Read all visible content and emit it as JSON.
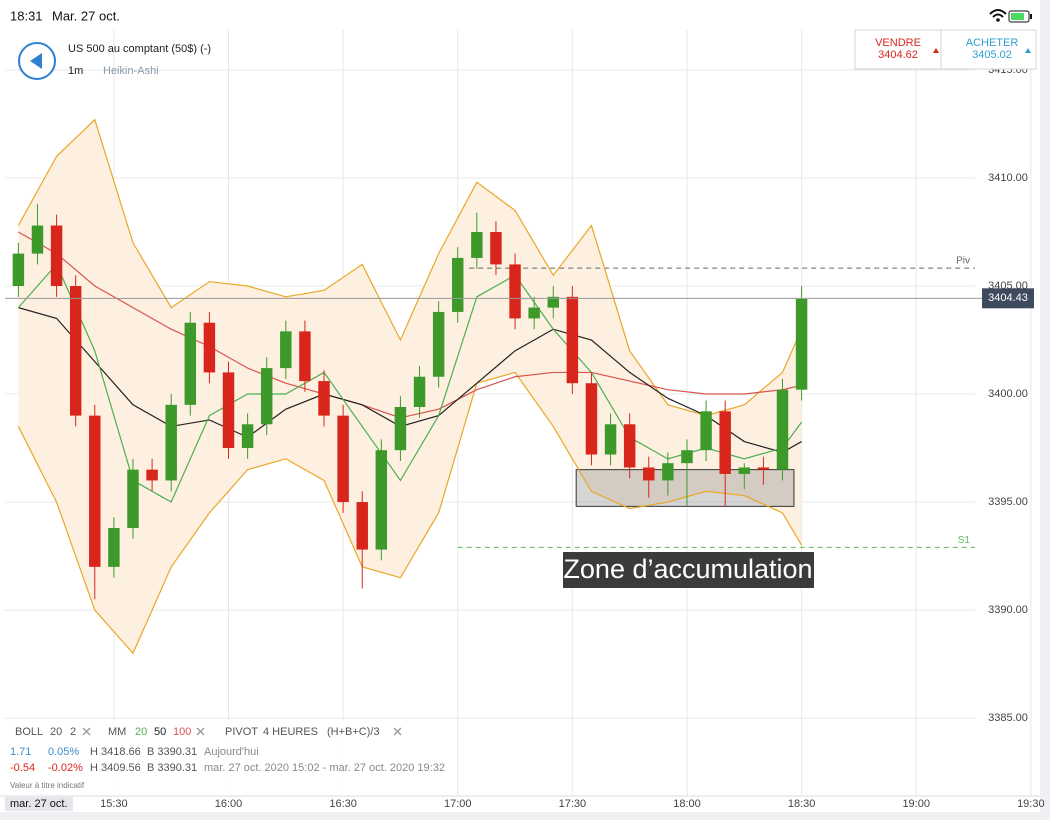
{
  "status_bar": {
    "time": "18:31",
    "date": "Mar. 27 oct."
  },
  "header": {
    "instrument": "US 500 au comptant (50$) (-)",
    "interval": "1m",
    "style": "Heikin-Ashi"
  },
  "quotes": {
    "sell": {
      "label": "VENDRE",
      "price": "3404.62"
    },
    "buy": {
      "label": "ACHETER",
      "price": "3405.02"
    }
  },
  "legend": {
    "indicators": [
      {
        "label": "BOLL",
        "params": [
          "20",
          "2"
        ]
      },
      {
        "label": "MM",
        "params": [
          "20",
          "50",
          "100"
        ]
      },
      {
        "label": "PIVOT",
        "params": [
          "4 HEURES",
          "(H+B+C)/3"
        ]
      }
    ],
    "rows": [
      [
        "1.71",
        "0.05%",
        "H 3418.66",
        "B 3390.31",
        "Aujourd'hui"
      ],
      [
        "-0.54",
        "-0.02%",
        "H 3409.56",
        "B 3390.31",
        "mar. 27 oct. 2020 15:02 - mar. 27 oct. 2020 19:32"
      ]
    ],
    "note": "Valeur à titre indicatif",
    "date_badge": "mar. 27 oct."
  },
  "chart_data": {
    "type": "candlestick",
    "annotation": "Zone d’accumulation",
    "xlim": [
      901.5,
      1172.4
    ],
    "ylim": [
      3381.44,
      3416.85
    ],
    "grid": true,
    "xticks": [
      {
        "value": 930,
        "label": "15:30"
      },
      {
        "value": 960,
        "label": "16:00"
      },
      {
        "value": 990,
        "label": "16:30"
      },
      {
        "value": 1020,
        "label": "17:00"
      },
      {
        "value": 1050,
        "label": "17:30"
      },
      {
        "value": 1080,
        "label": "18:00"
      },
      {
        "value": 1110,
        "label": "18:30"
      },
      {
        "value": 1140,
        "label": "19:00"
      },
      {
        "value": 1170,
        "label": "19:30"
      }
    ],
    "yticks": [
      {
        "value": 3385,
        "label": "3385.00"
      },
      {
        "value": 3390,
        "label": "3390.00"
      },
      {
        "value": 3395,
        "label": "3395.00"
      },
      {
        "value": 3400,
        "label": "3400.00"
      },
      {
        "value": 3405,
        "label": "3405.00"
      },
      {
        "value": 3410,
        "label": "3410.00"
      },
      {
        "value": 3415,
        "label": "3415.00"
      }
    ],
    "up_color": "#3d9a2a",
    "down_color": "#d8261d",
    "candles": {
      "x": [
        905,
        910,
        915,
        920,
        925,
        930,
        935,
        940,
        945,
        950,
        955,
        960,
        965,
        970,
        975,
        980,
        985,
        990,
        995,
        1000,
        1005,
        1010,
        1015,
        1020,
        1025,
        1030,
        1035,
        1040,
        1045,
        1050,
        1055,
        1060,
        1065,
        1070,
        1075,
        1080,
        1085,
        1090,
        1095,
        1100,
        1105,
        1110
      ],
      "open": [
        3405.0,
        3406.5,
        3407.8,
        3405.0,
        3399.0,
        3392.0,
        3393.8,
        3396.5,
        3396.0,
        3399.5,
        3403.3,
        3401.0,
        3397.5,
        3398.6,
        3401.2,
        3402.9,
        3400.6,
        3399.0,
        3395.0,
        3392.8,
        3397.4,
        3399.4,
        3400.8,
        3403.8,
        3406.3,
        3407.5,
        3406.0,
        3403.5,
        3404.0,
        3404.5,
        3400.5,
        3397.2,
        3398.6,
        3396.6,
        3396.0,
        3396.8,
        3397.4,
        3399.2,
        3396.3,
        3396.6,
        3396.5,
        3400.2
      ],
      "high": [
        3407.0,
        3408.8,
        3408.3,
        3405.5,
        3399.5,
        3394.3,
        3397.0,
        3397.0,
        3400.0,
        3403.8,
        3403.8,
        3401.5,
        3399.1,
        3401.7,
        3403.4,
        3403.4,
        3401.1,
        3399.5,
        3395.5,
        3397.9,
        3399.9,
        3401.3,
        3404.3,
        3406.8,
        3408.4,
        3408.0,
        3406.5,
        3404.5,
        3405.0,
        3405.0,
        3401.0,
        3399.1,
        3399.1,
        3397.1,
        3397.3,
        3397.9,
        3399.7,
        3399.7,
        3396.8,
        3397.1,
        3400.7,
        3405.0
      ],
      "low": [
        3404.5,
        3406.0,
        3404.5,
        3398.5,
        3390.5,
        3391.5,
        3393.3,
        3395.5,
        3395.5,
        3399.0,
        3400.5,
        3397.0,
        3397.0,
        3398.1,
        3400.7,
        3400.1,
        3398.5,
        3394.5,
        3391.0,
        3392.3,
        3396.9,
        3398.9,
        3400.3,
        3403.3,
        3405.8,
        3405.5,
        3403.0,
        3403.0,
        3403.5,
        3400.0,
        3396.7,
        3396.7,
        3396.1,
        3395.2,
        3395.3,
        3394.8,
        3396.9,
        3394.8,
        3395.6,
        3395.8,
        3396.0,
        3399.7
      ],
      "close": [
        3406.5,
        3407.8,
        3405.0,
        3399.0,
        3392.0,
        3393.8,
        3396.5,
        3396.0,
        3399.5,
        3403.3,
        3401.0,
        3397.5,
        3398.6,
        3401.2,
        3402.9,
        3400.6,
        3399.0,
        3395.0,
        3392.8,
        3397.4,
        3399.4,
        3400.8,
        3403.8,
        3406.3,
        3407.5,
        3406.0,
        3403.5,
        3404.0,
        3404.5,
        3400.5,
        3397.2,
        3398.6,
        3396.6,
        3396.0,
        3396.8,
        3397.4,
        3399.2,
        3396.3,
        3396.6,
        3396.5,
        3400.2,
        3404.4
      ]
    },
    "band_fill": "#fdf0e0",
    "line_x": [
      905,
      915,
      925,
      935,
      945,
      955,
      965,
      975,
      985,
      995,
      1005,
      1015,
      1025,
      1035,
      1045,
      1055,
      1065,
      1075,
      1085,
      1095,
      1105,
      1110
    ],
    "lines": [
      {
        "color": "#e9a727",
        "values": [
          3407.8,
          3411.0,
          3412.7,
          3407.0,
          3404.0,
          3405.2,
          3405.0,
          3404.5,
          3404.8,
          3406.0,
          3402.5,
          3406.5,
          3409.8,
          3408.5,
          3405.5,
          3407.8,
          3402.0,
          3399.5,
          3399.0,
          3399.5,
          3401.0,
          3403.0
        ]
      },
      {
        "color": "#e9a727",
        "values": [
          3398.5,
          3395.0,
          3390.0,
          3388.0,
          3392.0,
          3394.5,
          3396.5,
          3397.0,
          3396.0,
          3392.0,
          3391.5,
          3394.5,
          3400.5,
          3401.0,
          3398.5,
          3395.5,
          3394.7,
          3395.0,
          3395.5,
          3395.3,
          3394.5,
          3393.0
        ]
      },
      {
        "color": "#d9534f",
        "values": [
          3407.5,
          3406.5,
          3405.0,
          3404.0,
          3403.0,
          3402.2,
          3401.2,
          3400.5,
          3400.0,
          3399.5,
          3398.9,
          3399.3,
          3400.2,
          3400.8,
          3401.0,
          3401.0,
          3400.6,
          3400.2,
          3400.0,
          3400.0,
          3400.2,
          3400.4
        ]
      },
      {
        "color": "#222222",
        "values": [
          3404.0,
          3403.5,
          3401.5,
          3399.5,
          3398.5,
          3398.8,
          3398.0,
          3399.3,
          3400.0,
          3399.5,
          3398.5,
          3399.0,
          3400.5,
          3402.0,
          3403.0,
          3402.5,
          3401.0,
          3399.8,
          3399.0,
          3397.8,
          3397.3,
          3397.8
        ]
      },
      {
        "color": "#4caf50",
        "values": [
          3404.0,
          3406.0,
          3402.0,
          3396.0,
          3395.0,
          3399.0,
          3400.0,
          3400.0,
          3401.0,
          3398.5,
          3396.0,
          3399.0,
          3404.5,
          3405.5,
          3403.0,
          3401.0,
          3398.0,
          3397.0,
          3397.5,
          3397.0,
          3397.5,
          3398.7
        ]
      }
    ],
    "levels": [
      {
        "name": "Piv",
        "value": 3405.83,
        "start": 1023,
        "color": "#666666"
      },
      {
        "name": "S1",
        "value": 3392.9,
        "start": 1020,
        "color": "#5cb85c"
      }
    ],
    "last_price": {
      "value": 3404.43,
      "label": "3404.43"
    },
    "zone": {
      "x": [
        1051,
        1108
      ],
      "y": [
        3394.8,
        3396.5
      ]
    }
  }
}
